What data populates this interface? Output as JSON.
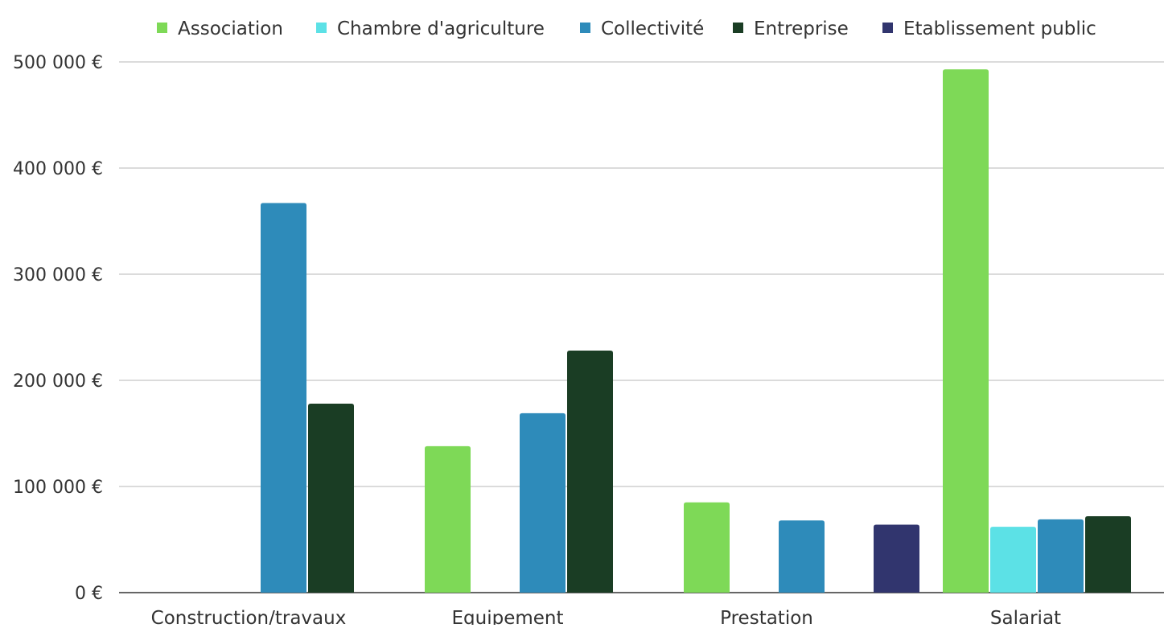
{
  "chart_data": {
    "type": "bar",
    "title": "",
    "xlabel": "",
    "ylabel": "",
    "categories": [
      "Construction/travaux",
      "Equipement",
      "Prestation",
      "Salariat"
    ],
    "series": [
      {
        "name": "Association",
        "color": "#7ED957",
        "values": [
          0,
          138000,
          85000,
          493000
        ]
      },
      {
        "name": "Chambre d'agriculture",
        "color": "#5CE1E6",
        "values": [
          0,
          0,
          0,
          62000
        ]
      },
      {
        "name": "Collectivité",
        "color": "#2E8BBA",
        "values": [
          367000,
          169000,
          68000,
          69000
        ]
      },
      {
        "name": "Entreprise",
        "color": "#1A3D24",
        "values": [
          178000,
          228000,
          0,
          72000
        ]
      },
      {
        "name": "Etablissement public",
        "color": "#31356E",
        "values": [
          0,
          0,
          64000,
          0
        ]
      }
    ],
    "ylim": [
      0,
      500000
    ],
    "yticks": [
      0,
      100000,
      200000,
      300000,
      400000,
      500000
    ],
    "ytick_labels": [
      "0 €",
      "100 000 €",
      "200 000 €",
      "300 000 €",
      "400 000 €",
      "500 000 €"
    ],
    "grid": true,
    "legend_position": "top"
  }
}
